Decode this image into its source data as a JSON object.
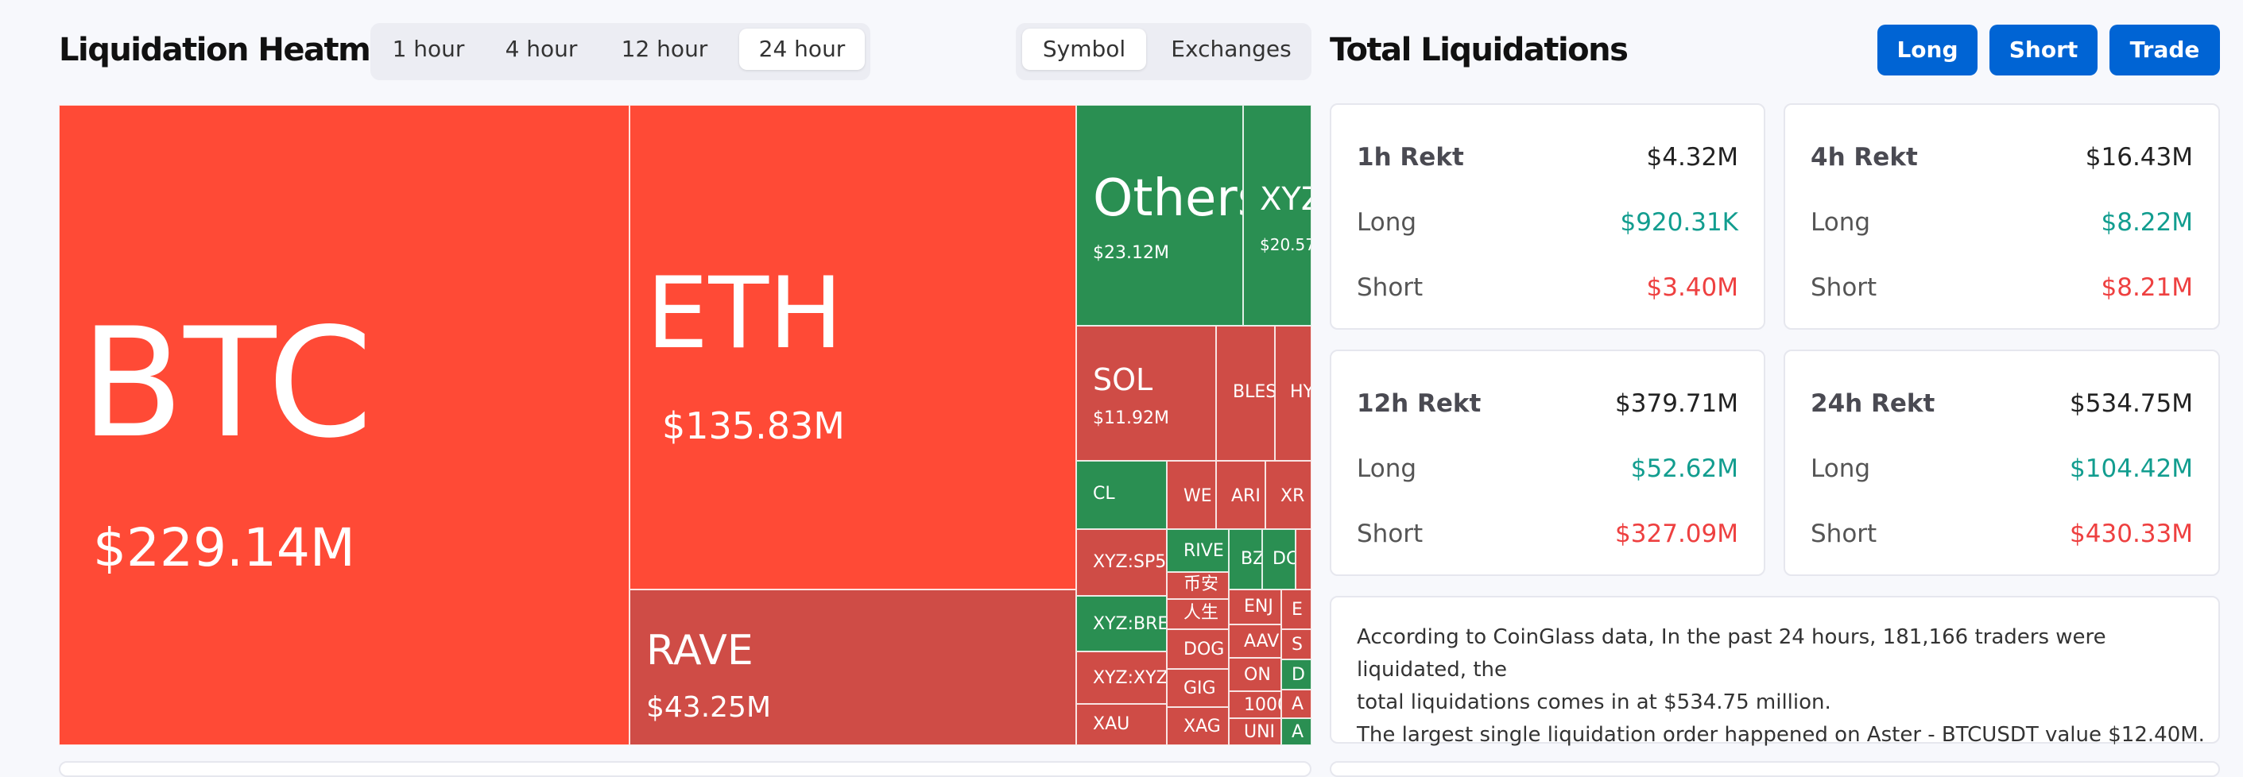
{
  "heatmap": {
    "title": "Liquidation Heatmap",
    "timeframes": [
      "1 hour",
      "4 hour",
      "12 hour",
      "24 hour"
    ],
    "active_timeframe": "24 hour",
    "views": [
      "Symbol",
      "Exchanges"
    ],
    "active_view": "Symbol",
    "tiles": {
      "btc": {
        "symbol": "BTC",
        "value": "$229.14M"
      },
      "eth": {
        "symbol": "ETH",
        "value": "$135.83M"
      },
      "rave": {
        "symbol": "RAVE",
        "value": "$43.25M"
      },
      "others": {
        "symbol": "Others",
        "value": "$23.12M"
      },
      "xyz": {
        "symbol": "XYZ",
        "value": "$20.57"
      },
      "sol": {
        "symbol": "SOL",
        "value": "$11.92M"
      },
      "bles": {
        "symbol": "BLES"
      },
      "hy": {
        "symbol": "HY"
      },
      "cl": {
        "symbol": "CL"
      },
      "we": {
        "symbol": "WE"
      },
      "ari": {
        "symbol": "ARI"
      },
      "xr": {
        "symbol": "XR"
      },
      "xyzsp5": {
        "symbol": "XYZ:SP5"
      },
      "rive": {
        "symbol": "RIVE"
      },
      "bz": {
        "symbol": "BZ"
      },
      "dc": {
        "symbol": "DC"
      },
      "cn1": {
        "symbol": "币安"
      },
      "cn2": {
        "symbol": "人生"
      },
      "xyzbre": {
        "symbol": "XYZ:BRE"
      },
      "enj": {
        "symbol": "ENJ"
      },
      "e": {
        "symbol": "E"
      },
      "dog": {
        "symbol": "DOG"
      },
      "aav": {
        "symbol": "AAV"
      },
      "s": {
        "symbol": "S"
      },
      "xyzxyz": {
        "symbol": "XYZ:XYZ"
      },
      "on": {
        "symbol": "ON"
      },
      "d": {
        "symbol": "D"
      },
      "gig": {
        "symbol": "GIG"
      },
      "k1000": {
        "symbol": "1000"
      },
      "a1": {
        "symbol": "A"
      },
      "xau": {
        "symbol": "XAU"
      },
      "xag": {
        "symbol": "XAG"
      },
      "uni": {
        "symbol": "UNI"
      },
      "a2": {
        "symbol": "A"
      }
    }
  },
  "total": {
    "title": "Total Liquidations",
    "buttons": {
      "long": "Long",
      "short": "Short",
      "trade": "Trade"
    },
    "cards": [
      {
        "period": "1h Rekt",
        "total": "$4.32M",
        "long_label": "Long",
        "long": "$920.31K",
        "short_label": "Short",
        "short": "$3.40M"
      },
      {
        "period": "4h Rekt",
        "total": "$16.43M",
        "long_label": "Long",
        "long": "$8.22M",
        "short_label": "Short",
        "short": "$8.21M"
      },
      {
        "period": "12h Rekt",
        "total": "$379.71M",
        "long_label": "Long",
        "long": "$52.62M",
        "short_label": "Short",
        "short": "$327.09M"
      },
      {
        "period": "24h Rekt",
        "total": "$534.75M",
        "long_label": "Long",
        "long": "$104.42M",
        "short_label": "Short",
        "short": "$430.33M"
      }
    ],
    "summary_line1": "According to CoinGlass data, In the past 24 hours, 181,166 traders were liquidated, the",
    "summary_line2": "total liquidations comes in at $534.75 million.",
    "summary_line3": "The largest single liquidation order happened on Aster - BTCUSDT value $12.40M."
  },
  "colors": {
    "accent": "#0064d4",
    "liquidation_red": "#ff4a36",
    "liquidation_red_dark": "#cf4c46",
    "liquidation_green": "#2a8f52",
    "long_text": "#129d8f",
    "short_text": "#ee4040"
  }
}
